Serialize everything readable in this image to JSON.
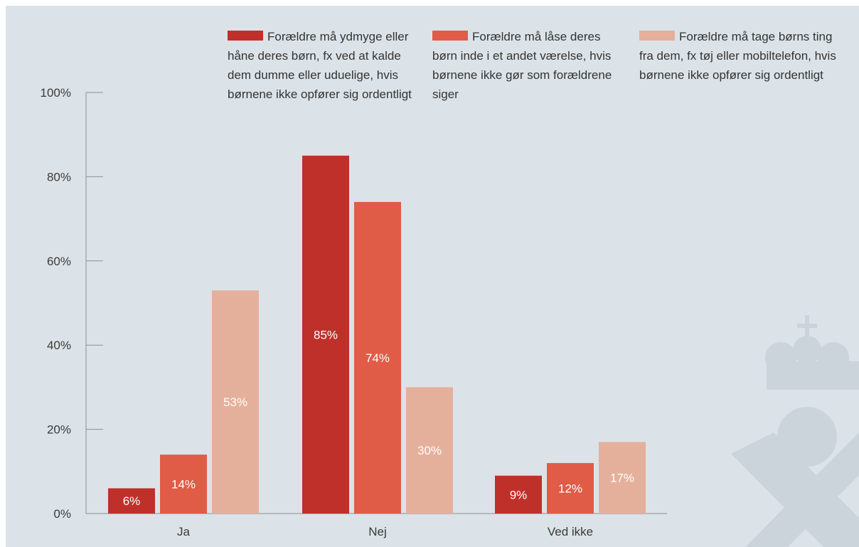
{
  "chart_data": {
    "type": "bar",
    "categories": [
      "Ja",
      "Nej",
      "Ved ikke"
    ],
    "ylim": [
      0,
      100
    ],
    "yticks": [
      "0%",
      "20%",
      "40%",
      "60%",
      "80%",
      "100%"
    ],
    "grid": false,
    "legend_position": "top",
    "series": [
      {
        "name": "Forældre må ydmyge eller håne deres børn, fx ved at kalde dem dumme eller uduelige, hvis børnene ikke opfører sig ordentligt",
        "color": "#c0302a",
        "values": [
          6,
          85,
          9
        ],
        "labels": [
          "6%",
          "85%",
          "9%"
        ]
      },
      {
        "name": "Forældre må låse deres børn inde i et andet værelse, hvis børnene ikke gør som forældrene siger",
        "color": "#e05c47",
        "values": [
          14,
          74,
          12
        ],
        "labels": [
          "14%",
          "74%",
          "12%"
        ]
      },
      {
        "name": "Forældre må tage børns ting fra dem, fx tøj eller mobiltelefon, hvis børnene ikke opfører sig ordentligt",
        "color": "#e5b09b",
        "values": [
          53,
          30,
          17
        ],
        "labels": [
          "53%",
          "30%",
          "17%"
        ]
      }
    ]
  }
}
